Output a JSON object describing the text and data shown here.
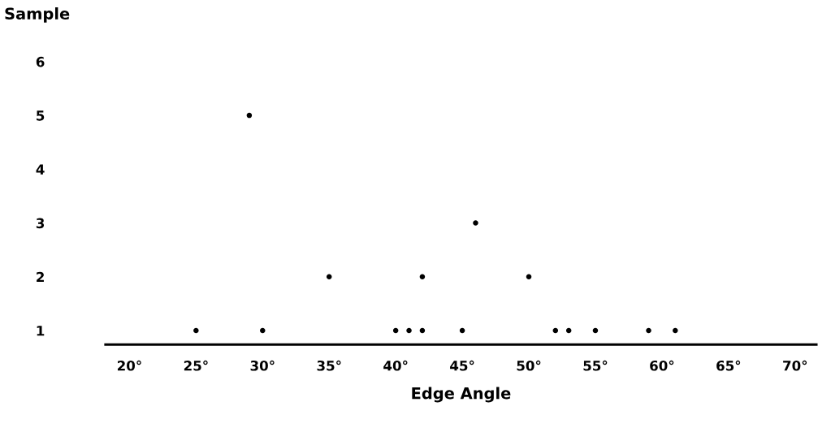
{
  "chart_data": {
    "type": "scatter",
    "xlabel": "Edge Angle",
    "ylabel": "Sample",
    "series": [
      {
        "color": "#000000",
        "x": [
          25,
          29,
          30,
          35,
          40,
          41,
          42,
          42,
          45,
          46,
          50,
          52,
          53,
          55,
          59,
          61
        ],
        "values": [
          1,
          5,
          1,
          2,
          1,
          1,
          1,
          2,
          1,
          3,
          2,
          1,
          1,
          1,
          1,
          1
        ]
      }
    ],
    "xlim": [
      18.2,
      71.6
    ],
    "ylim": [
      0.74,
      6
    ],
    "xticks": [
      {
        "value": 20,
        "label": "20°"
      },
      {
        "value": 25,
        "label": "25°"
      },
      {
        "value": 30,
        "label": "30°"
      },
      {
        "value": 35,
        "label": "35°"
      },
      {
        "value": 40,
        "label": "40°"
      },
      {
        "value": 45,
        "label": "45°"
      },
      {
        "value": 50,
        "label": "50°"
      },
      {
        "value": 55,
        "label": "55°"
      },
      {
        "value": 60,
        "label": "60°"
      },
      {
        "value": 65,
        "label": "65°"
      },
      {
        "value": 70,
        "label": "70°"
      }
    ],
    "yticks": [
      1,
      2,
      3,
      4,
      5,
      6
    ],
    "grid": false,
    "legend": false,
    "marker": "circle"
  }
}
